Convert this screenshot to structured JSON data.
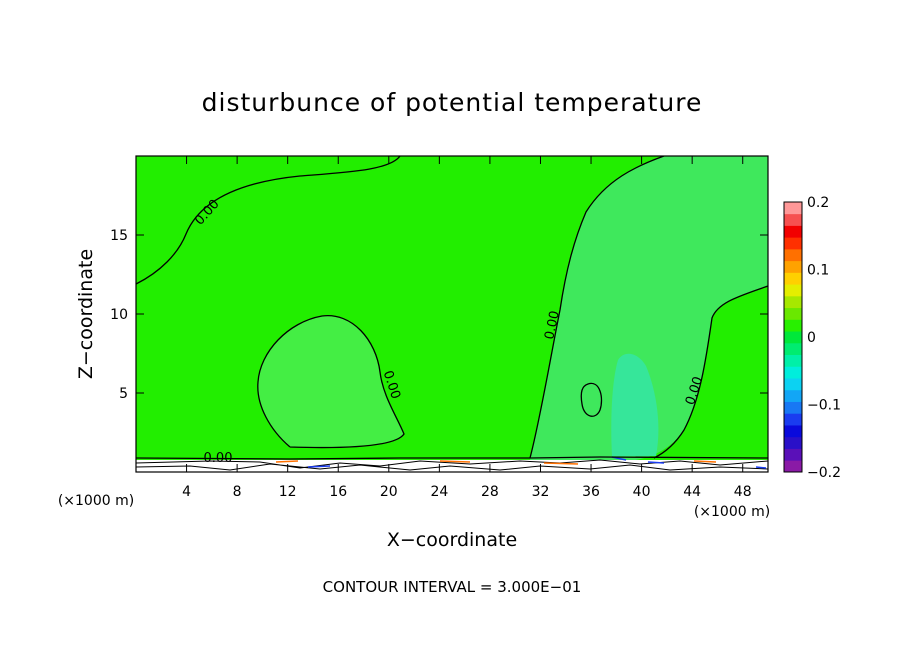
{
  "chart_data": {
    "type": "heatmap",
    "title": "disturbunce of potential temperature",
    "xlabel": "X−coordinate",
    "ylabel": "Z−coordinate",
    "x_unit_left": "(×1000 m)",
    "x_unit_right": "(×1000 m)",
    "xlim": [
      0,
      50
    ],
    "ylim": [
      0,
      20
    ],
    "x_ticks": [
      4,
      8,
      12,
      16,
      20,
      24,
      28,
      32,
      36,
      40,
      44,
      48
    ],
    "x_tick_labels": [
      "4",
      "8",
      "12",
      "16",
      "20",
      "24",
      "28",
      "32",
      "36",
      "40",
      "44",
      "48"
    ],
    "y_ticks": [
      5,
      10,
      15
    ],
    "y_tick_labels": [
      "5",
      "10",
      "15"
    ],
    "contour_labels": [
      "0.00",
      "0.00",
      "0.00",
      "0.00",
      "0.00"
    ],
    "contour_interval": "CONTOUR INTERVAL = 3.000E−01",
    "background_value": 0.0,
    "anomalies": [
      {
        "name": "upper-left warm",
        "value": 0.0
      },
      {
        "name": "mid-left cell",
        "value": -0.01
      },
      {
        "name": "right column",
        "value": -0.01
      },
      {
        "name": "right cold core",
        "value": -0.04
      }
    ],
    "colorbar": {
      "min": -0.2,
      "max": 0.2,
      "tick_labels": [
        "0.2",
        "0.1",
        "0",
        "−0.1",
        "−0.2"
      ],
      "tick_values": [
        0.2,
        0.1,
        0,
        -0.1,
        -0.2
      ],
      "colors": [
        "#8a1aa6",
        "#5a10b8",
        "#2a10c8",
        "#0a0adc",
        "#1a3cf0",
        "#1878f4",
        "#12a6f6",
        "#0cd2f2",
        "#00eedc",
        "#00f0a8",
        "#00ec70",
        "#00e83a",
        "#28f000",
        "#6ae800",
        "#a6e800",
        "#e4ee00",
        "#ffd000",
        "#ffa200",
        "#ff7000",
        "#ff3000",
        "#f20000",
        "#f65050",
        "#ff9898"
      ]
    },
    "colors": {
      "field": "#22ee00",
      "cool_cell": "#44ee44",
      "right_column": "#3fe85c",
      "cold_core": "#36e69a"
    }
  }
}
